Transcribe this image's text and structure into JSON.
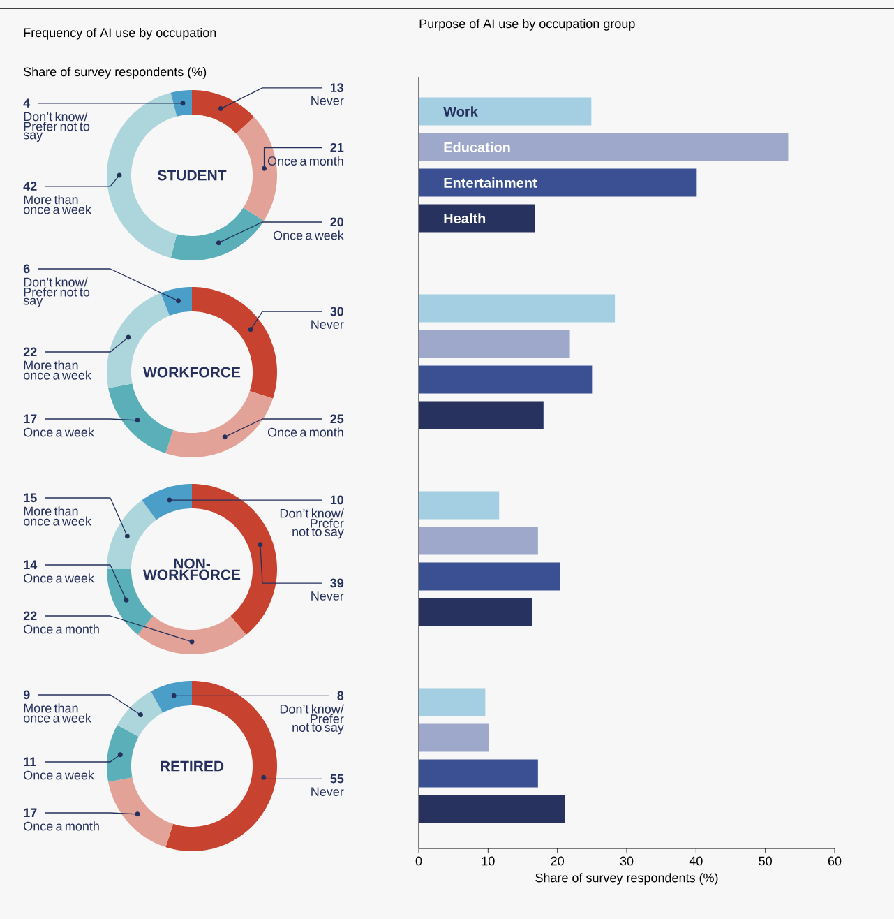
{
  "chart_data": [
    {
      "type": "donut",
      "title": "Frequency of AI use by occupation",
      "subtitle": "Share of survey respondents (%)",
      "annotations": [
        "STUDENT"
      ],
      "data_labels": true,
      "categories": [
        "Never",
        "Once a month",
        "Once a week",
        "More than once a week",
        "Don’t know/ Prefer not to say"
      ],
      "values": [
        13,
        21,
        20,
        42,
        4
      ],
      "colors": [
        "#c8432f",
        "#e3a298",
        "#5aafb8",
        "#acd6dc",
        "#4a9ec8"
      ]
    },
    {
      "type": "donut",
      "annotations": [
        "WORKFORCE"
      ],
      "data_labels": true,
      "categories": [
        "Never",
        "Once a month",
        "Once a week",
        "More than once a week",
        "Don’t know/ Prefer not to say"
      ],
      "values": [
        30,
        25,
        17,
        22,
        6
      ],
      "colors": [
        "#c8432f",
        "#e3a298",
        "#5aafb8",
        "#acd6dc",
        "#4a9ec8"
      ]
    },
    {
      "type": "donut",
      "annotations": [
        "NON-WORKFORCE"
      ],
      "data_labels": true,
      "categories": [
        "Never",
        "Once a month",
        "Once a week",
        "More than once a week",
        "Don’t know/ Prefer not to say"
      ],
      "values": [
        39,
        22,
        14,
        15,
        10
      ],
      "colors": [
        "#c8432f",
        "#e3a298",
        "#5aafb8",
        "#acd6dc",
        "#4a9ec8"
      ]
    },
    {
      "type": "donut",
      "annotations": [
        "RETIRED"
      ],
      "data_labels": true,
      "categories": [
        "Never",
        "Once a month",
        "Once a week",
        "More than once a week",
        "Don’t know/ Prefer not to say"
      ],
      "values": [
        55,
        17,
        11,
        9,
        8
      ],
      "colors": [
        "#c8432f",
        "#e3a298",
        "#5aafb8",
        "#acd6dc",
        "#4a9ec8"
      ]
    },
    {
      "type": "bar",
      "orientation": "horizontal",
      "title": "Purpose of AI use by occupation group",
      "xlabel": "Share of survey respondents (%)",
      "categories": [
        null,
        null,
        null,
        null
      ],
      "xlim": [
        0,
        60
      ],
      "xticks": [
        0,
        10,
        20,
        30,
        40,
        50,
        60
      ],
      "series": [
        {
          "name": "Work",
          "color": "#a4cfe2",
          "values": [
            24.9,
            28.3,
            11.6,
            9.6
          ]
        },
        {
          "name": "Education",
          "color": "#9ea8cb",
          "values": [
            53.3,
            21.8,
            17.2,
            10.1
          ]
        },
        {
          "name": "Entertainment",
          "color": "#3a5093",
          "values": [
            40.1,
            25.0,
            20.4,
            17.2
          ]
        },
        {
          "name": "Health",
          "color": "#28325e",
          "values": [
            16.8,
            18.0,
            16.4,
            21.1
          ]
        }
      ]
    }
  ]
}
